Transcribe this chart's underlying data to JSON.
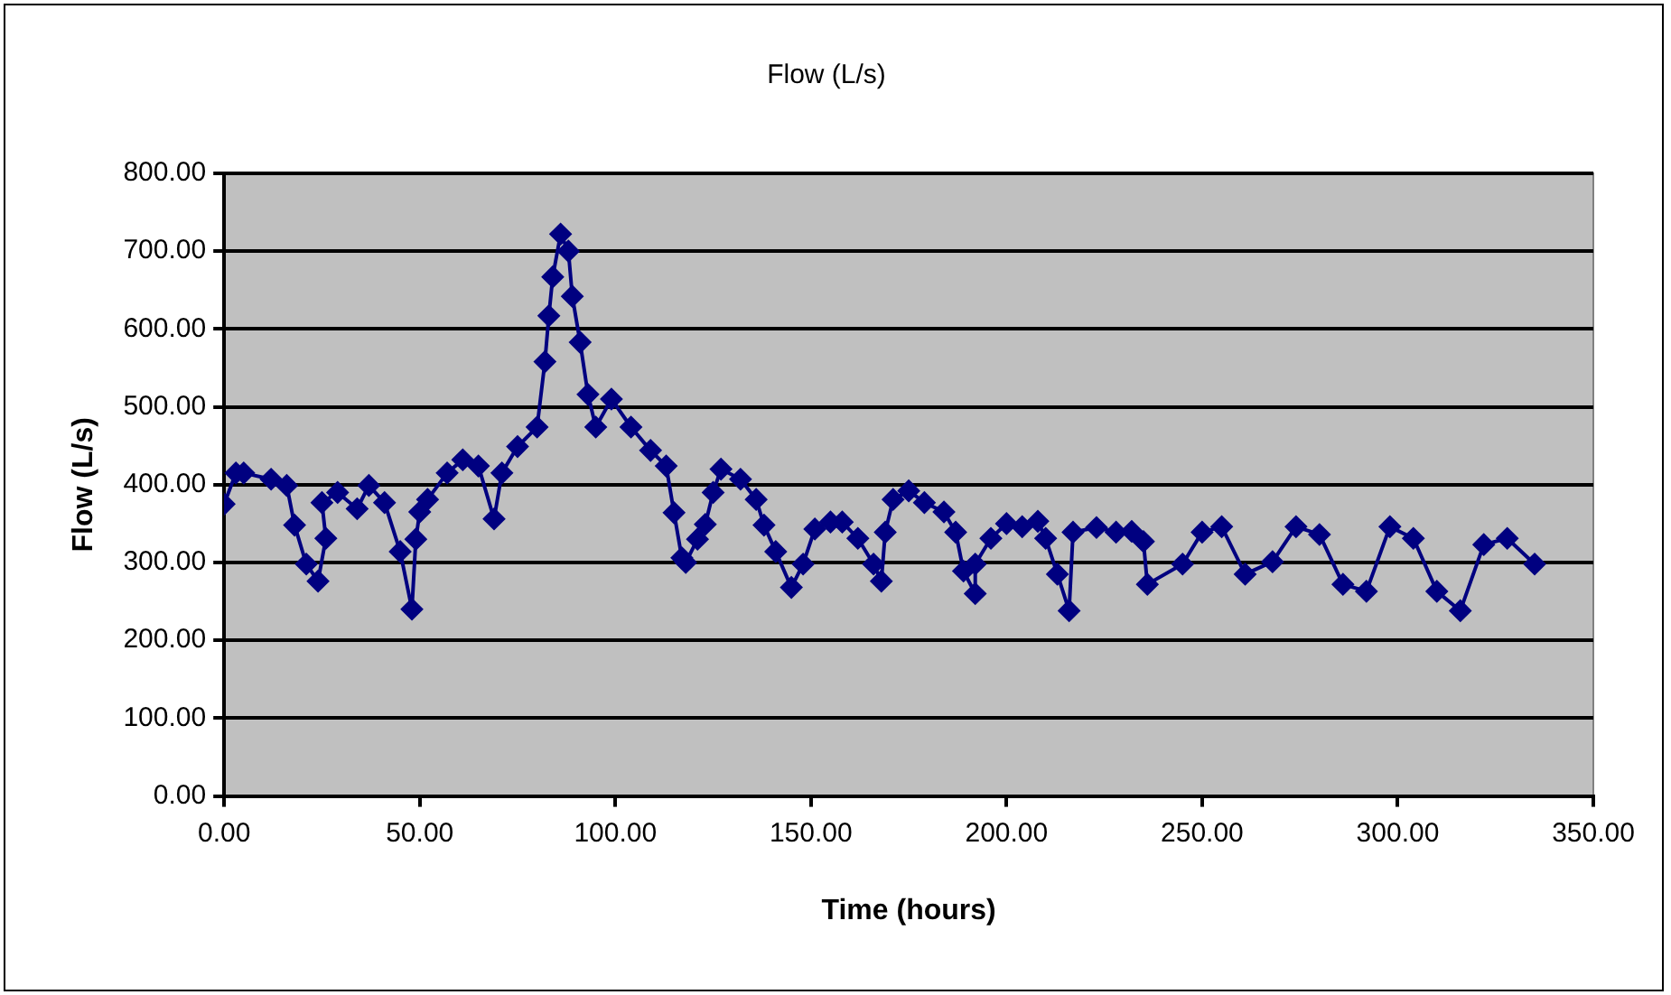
{
  "chart_data": {
    "type": "line",
    "title": "Flow (L/s)",
    "xlabel": "Time (hours)",
    "ylabel": "Flow (L/s)",
    "marker": "diamond",
    "line_style": "solid",
    "grid": "y",
    "legend": false,
    "xlim": [
      0,
      350
    ],
    "xticks": [
      {
        "value": 0,
        "label": "0.00"
      },
      {
        "value": 50,
        "label": "50.00"
      },
      {
        "value": 100,
        "label": "100.00"
      },
      {
        "value": 150,
        "label": "150.00"
      },
      {
        "value": 200,
        "label": "200.00"
      },
      {
        "value": 250,
        "label": "250.00"
      },
      {
        "value": 300,
        "label": "300.00"
      },
      {
        "value": 350,
        "label": "350.00"
      }
    ],
    "ylim": [
      0,
      800
    ],
    "yticks": [
      {
        "value": 0,
        "label": "0.00"
      },
      {
        "value": 100,
        "label": "100.00"
      },
      {
        "value": 200,
        "label": "200.00"
      },
      {
        "value": 300,
        "label": "300.00"
      },
      {
        "value": 400,
        "label": "400.00"
      },
      {
        "value": 500,
        "label": "500.00"
      },
      {
        "value": 600,
        "label": "600.00"
      },
      {
        "value": 700,
        "label": "700.00"
      },
      {
        "value": 800,
        "label": "800.00"
      }
    ],
    "series": [
      {
        "color": "#000080",
        "x": [
          0,
          3,
          5,
          12,
          16,
          18,
          21,
          24,
          26,
          25,
          29,
          34,
          37,
          41,
          45,
          48,
          49,
          50,
          52,
          57,
          61,
          65,
          69,
          71,
          75,
          80,
          82,
          83,
          84,
          86,
          88,
          89,
          91,
          93,
          95,
          99,
          104,
          109,
          113,
          115,
          117,
          118,
          121,
          123,
          125,
          127,
          132,
          136,
          138,
          141,
          145,
          148,
          151,
          155,
          158,
          162,
          166,
          168,
          169,
          171,
          175,
          179,
          184,
          187,
          189,
          192,
          192,
          196,
          200,
          204,
          208,
          210,
          213,
          216,
          217,
          223,
          228,
          232,
          235,
          236,
          245,
          250,
          255,
          261,
          268,
          274,
          280,
          286,
          292,
          298,
          304,
          310,
          316,
          322,
          328,
          335
        ],
        "values": [
          375,
          415,
          415,
          407,
          399,
          348,
          298,
          276,
          331,
          377,
          390,
          369,
          399,
          377,
          314,
          240,
          330,
          365,
          381,
          415,
          432,
          424,
          356,
          415,
          449,
          474,
          558,
          617,
          667,
          722,
          700,
          642,
          583,
          516,
          474,
          510,
          474,
          444,
          424,
          364,
          306,
          300,
          330,
          349,
          390,
          420,
          407,
          381,
          348,
          314,
          268,
          298,
          343,
          352,
          352,
          331,
          298,
          276,
          339,
          381,
          392,
          377,
          365,
          339,
          289,
          260,
          298,
          331,
          350,
          346,
          353,
          331,
          285,
          238,
          339,
          345,
          339,
          340,
          327,
          272,
          298,
          339,
          346,
          285,
          301,
          346,
          336,
          272,
          263,
          346,
          331,
          263,
          238,
          323,
          331,
          298
        ]
      }
    ]
  }
}
